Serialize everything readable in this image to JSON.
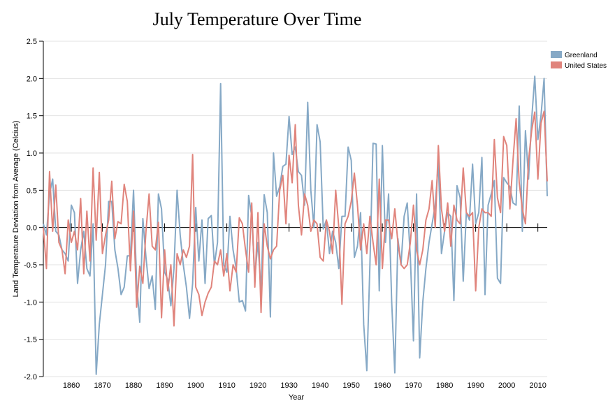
{
  "chart_data": {
    "type": "line",
    "title": "July Temperature Over Time",
    "x_label": "Year",
    "y_label": "Land Temperature Deviation from Average (Celcius)",
    "x": [
      1851,
      1852,
      1853,
      1854,
      1855,
      1856,
      1857,
      1858,
      1859,
      1860,
      1861,
      1862,
      1863,
      1864,
      1865,
      1866,
      1867,
      1868,
      1869,
      1870,
      1871,
      1872,
      1873,
      1874,
      1875,
      1876,
      1877,
      1878,
      1879,
      1880,
      1881,
      1882,
      1883,
      1884,
      1885,
      1886,
      1887,
      1888,
      1889,
      1890,
      1891,
      1892,
      1893,
      1894,
      1895,
      1896,
      1897,
      1898,
      1899,
      1900,
      1901,
      1902,
      1903,
      1904,
      1905,
      1906,
      1907,
      1908,
      1909,
      1910,
      1911,
      1912,
      1913,
      1914,
      1915,
      1916,
      1917,
      1918,
      1919,
      1920,
      1921,
      1922,
      1923,
      1924,
      1925,
      1926,
      1927,
      1928,
      1929,
      1930,
      1931,
      1932,
      1933,
      1934,
      1935,
      1936,
      1937,
      1938,
      1939,
      1940,
      1941,
      1942,
      1943,
      1944,
      1945,
      1946,
      1947,
      1948,
      1949,
      1950,
      1951,
      1952,
      1953,
      1954,
      1955,
      1956,
      1957,
      1958,
      1959,
      1960,
      1961,
      1962,
      1963,
      1964,
      1965,
      1966,
      1967,
      1968,
      1969,
      1970,
      1971,
      1972,
      1973,
      1974,
      1975,
      1976,
      1977,
      1978,
      1979,
      1980,
      1981,
      1982,
      1983,
      1984,
      1985,
      1986,
      1987,
      1988,
      1989,
      1990,
      1991,
      1992,
      1993,
      1994,
      1995,
      1996,
      1997,
      1998,
      1999,
      2000,
      2001,
      2002,
      2003,
      2004,
      2005,
      2006,
      2007,
      2008,
      2009,
      2010,
      2011,
      2012,
      2013
    ],
    "series": [
      {
        "name": "Greenland",
        "color": "#86a9c6",
        "values": [
          0.05,
          -0.1,
          0.45,
          0.65,
          -0.05,
          -0.1,
          -0.3,
          -0.35,
          -0.45,
          0.3,
          0.2,
          -0.75,
          -0.3,
          -0.05,
          -0.55,
          -0.65,
          0.05,
          -1.97,
          -1.3,
          -0.9,
          -0.5,
          0.35,
          0.35,
          -0.3,
          -0.55,
          -0.9,
          -0.8,
          -0.38,
          -0.38,
          0.5,
          -0.75,
          -1.27,
          0.12,
          -0.4,
          -0.82,
          -0.65,
          -1.1,
          0.45,
          0.25,
          -0.6,
          -0.7,
          -1.05,
          -0.55,
          0.5,
          -0.1,
          -0.5,
          -0.8,
          -1.22,
          -0.75,
          0.27,
          -0.45,
          0.1,
          -0.75,
          0.12,
          0.16,
          -0.5,
          -0.2,
          1.93,
          -0.5,
          -0.6,
          0.15,
          -0.3,
          -0.55,
          -1.0,
          -0.98,
          -1.12,
          0.43,
          0.15,
          -0.65,
          -0.2,
          -0.85,
          0.44,
          0.2,
          -1.2,
          1.0,
          0.42,
          0.55,
          0.82,
          0.85,
          1.49,
          0.98,
          1.08,
          0.75,
          0.7,
          0.3,
          1.68,
          0.5,
          0.0,
          1.38,
          1.15,
          -0.02,
          0.1,
          -0.35,
          -0.05,
          -0.2,
          -0.55,
          0.15,
          0.15,
          1.08,
          0.9,
          -0.4,
          -0.25,
          0.2,
          -1.3,
          -1.92,
          -0.5,
          1.13,
          1.12,
          -0.85,
          1.1,
          -0.2,
          0.45,
          -1.0,
          -1.95,
          -0.15,
          -0.5,
          0.15,
          0.33,
          -0.4,
          -1.52,
          0.45,
          -1.75,
          -1.0,
          -0.55,
          -0.2,
          0.05,
          0.3,
          0.88,
          -0.35,
          -0.05,
          0.2,
          0.15,
          -0.98,
          0.56,
          0.4,
          -0.72,
          0.2,
          0.1,
          0.85,
          0.05,
          0.2,
          0.94,
          -0.9,
          0.3,
          0.45,
          0.63,
          -0.68,
          -0.75,
          0.67,
          0.6,
          0.55,
          0.33,
          0.3,
          1.63,
          -0.05,
          1.3,
          0.65,
          1.45,
          2.03,
          1.18,
          1.5,
          2.0,
          0.42
        ]
      },
      {
        "name": "United States",
        "color": "#e0847c",
        "values": [
          0.0,
          -0.55,
          0.75,
          -0.05,
          0.57,
          -0.2,
          -0.3,
          -0.62,
          0.1,
          -0.2,
          -0.05,
          -0.3,
          0.39,
          -0.62,
          0.22,
          -0.45,
          0.8,
          -0.17,
          0.74,
          -0.35,
          -0.1,
          0.1,
          0.62,
          -0.15,
          0.08,
          0.05,
          0.58,
          0.35,
          -0.58,
          0.22,
          -1.07,
          -0.52,
          -0.75,
          -0.05,
          0.45,
          -0.25,
          -0.3,
          0.07,
          -1.21,
          -0.3,
          -0.85,
          -0.5,
          -1.32,
          -0.35,
          -0.5,
          -0.3,
          -0.4,
          -0.25,
          0.98,
          -0.8,
          -0.9,
          -1.18,
          -1.0,
          -0.88,
          -0.8,
          -0.45,
          -0.5,
          -0.3,
          -0.65,
          -0.35,
          -0.85,
          -0.5,
          -0.6,
          0.13,
          0.05,
          -0.3,
          -0.6,
          0.33,
          -0.8,
          0.2,
          -1.14,
          0.05,
          -0.25,
          -0.42,
          -0.3,
          -0.25,
          0.5,
          0.7,
          0.05,
          0.97,
          0.6,
          1.38,
          0.3,
          -0.1,
          0.45,
          0.3,
          -0.05,
          0.1,
          0.05,
          -0.4,
          -0.45,
          0.1,
          -0.05,
          -0.35,
          0.5,
          0.0,
          -1.03,
          0.05,
          0.15,
          0.35,
          0.73,
          0.3,
          -0.3,
          0.05,
          -0.35,
          0.15,
          -0.2,
          -0.5,
          0.65,
          -0.55,
          0.1,
          0.1,
          -0.15,
          0.25,
          -0.2,
          -0.5,
          -0.55,
          -0.5,
          -0.2,
          0.3,
          -0.3,
          -0.5,
          -0.3,
          0.1,
          0.25,
          0.63,
          0.0,
          1.1,
          0.25,
          -0.05,
          0.33,
          -0.25,
          0.3,
          0.1,
          0.05,
          0.8,
          0.2,
          0.15,
          0.2,
          -0.85,
          0.0,
          0.25,
          0.2,
          0.2,
          0.15,
          1.18,
          0.4,
          0.2,
          1.22,
          1.1,
          0.25,
          0.9,
          1.46,
          0.6,
          0.25,
          0.05,
          0.9,
          1.3,
          1.55,
          0.65,
          1.4,
          1.56,
          0.62
        ]
      }
    ],
    "xlim": [
      1851,
      2013
    ],
    "xticks": [
      1860,
      1870,
      1880,
      1890,
      1900,
      1910,
      1920,
      1930,
      1940,
      1950,
      1960,
      1970,
      1980,
      1990,
      2000,
      2010
    ],
    "ylim": [
      -2,
      2.5
    ],
    "yticks": [
      {
        "value": -2,
        "label": "-2.0"
      },
      -1.5,
      {
        "value": -1,
        "label": "-1.0"
      },
      -0.5,
      {
        "value": 0,
        "label": "0.0"
      },
      0.5,
      {
        "value": 1,
        "label": "1.0"
      },
      1.5,
      {
        "value": 2,
        "label": "2.0"
      },
      2.5
    ],
    "grid": true,
    "legend": "top-right"
  }
}
